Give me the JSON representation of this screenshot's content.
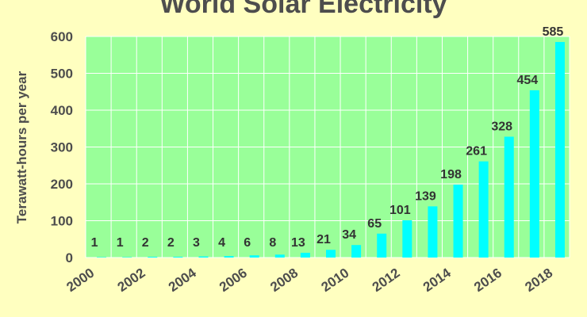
{
  "chart_data": {
    "type": "bar",
    "title": "World Solar Electricity",
    "xlabel": "",
    "ylabel": "Terawatt-hours per year",
    "categories": [
      "2000",
      "2001",
      "2002",
      "2003",
      "2004",
      "2005",
      "2006",
      "2007",
      "2008",
      "2009",
      "2010",
      "2011",
      "2012",
      "2013",
      "2014",
      "2015",
      "2016",
      "2017",
      "2018"
    ],
    "x_tick_labels": [
      "2000",
      "2002",
      "2004",
      "2006",
      "2008",
      "2010",
      "2012",
      "2014",
      "2016",
      "2018"
    ],
    "values": [
      1,
      1,
      2,
      2,
      3,
      4,
      6,
      8,
      13,
      21,
      34,
      65,
      101,
      139,
      198,
      261,
      328,
      454,
      585
    ],
    "data_labels": [
      "1",
      "1",
      "2",
      "2",
      "3",
      "4",
      "6",
      "8",
      "13",
      "21",
      "34",
      "65",
      "101",
      "139",
      "198",
      "261",
      "328",
      "454",
      "585"
    ],
    "ylim": [
      0,
      600
    ],
    "y_ticks": [
      0,
      100,
      200,
      300,
      400,
      500,
      600
    ],
    "grid": true,
    "legend": "none",
    "colors": {
      "bar": "#00ffff",
      "plot_background": "#99ff99",
      "page_background": "#ffffc0",
      "gridline": "#ffffff",
      "text": "#4d4d4d"
    }
  }
}
